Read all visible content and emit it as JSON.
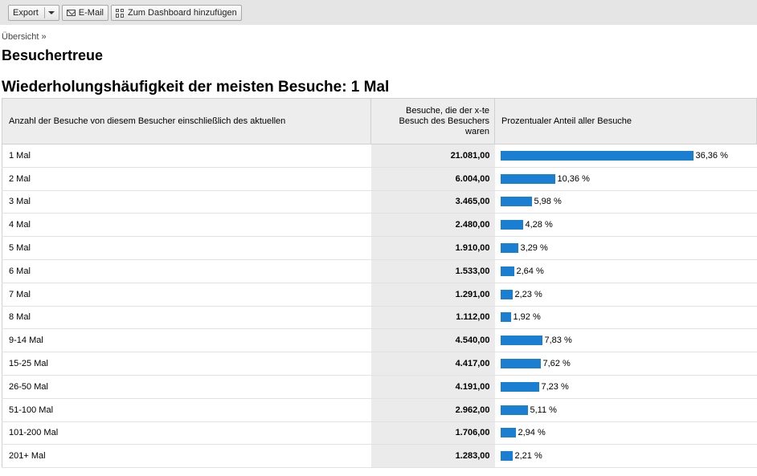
{
  "toolbar": {
    "export_label": "Export",
    "email_label": "E-Mail",
    "dashboard_label": "Zum Dashboard hinzufügen"
  },
  "breadcrumb": "Übersicht »",
  "page_title": "Besuchertreue",
  "section_title": "Wiederholungshäufigkeit der meisten Besuche: 1 Mal",
  "table": {
    "headers": [
      "Anzahl der Besuche von diesem Besucher einschließlich des aktuellen",
      "Besuche, die der x-te Besuch des Besuchers waren",
      "Prozentualer Anteil aller Besuche"
    ],
    "bar_color": "#1a7fd3",
    "rows": [
      {
        "label": "1 Mal",
        "visits": "21.081,00",
        "pct": "36,36 %",
        "pct_value": 36.36
      },
      {
        "label": "2 Mal",
        "visits": "6.004,00",
        "pct": "10,36 %",
        "pct_value": 10.36
      },
      {
        "label": "3 Mal",
        "visits": "3.465,00",
        "pct": "5,98 %",
        "pct_value": 5.98
      },
      {
        "label": "4 Mal",
        "visits": "2.480,00",
        "pct": "4,28 %",
        "pct_value": 4.28
      },
      {
        "label": "5 Mal",
        "visits": "1.910,00",
        "pct": "3,29 %",
        "pct_value": 3.29
      },
      {
        "label": "6 Mal",
        "visits": "1.533,00",
        "pct": "2,64 %",
        "pct_value": 2.64
      },
      {
        "label": "7 Mal",
        "visits": "1.291,00",
        "pct": "2,23 %",
        "pct_value": 2.23
      },
      {
        "label": "8 Mal",
        "visits": "1.112,00",
        "pct": "1,92 %",
        "pct_value": 1.92
      },
      {
        "label": "9-14 Mal",
        "visits": "4.540,00",
        "pct": "7,83 %",
        "pct_value": 7.83
      },
      {
        "label": "15-25 Mal",
        "visits": "4.417,00",
        "pct": "7,62 %",
        "pct_value": 7.62
      },
      {
        "label": "26-50 Mal",
        "visits": "4.191,00",
        "pct": "7,23 %",
        "pct_value": 7.23
      },
      {
        "label": "51-100 Mal",
        "visits": "2.962,00",
        "pct": "5,11 %",
        "pct_value": 5.11
      },
      {
        "label": "101-200 Mal",
        "visits": "1.706,00",
        "pct": "2,94 %",
        "pct_value": 2.94
      },
      {
        "label": "201+ Mal",
        "visits": "1.283,00",
        "pct": "2,21 %",
        "pct_value": 2.21
      }
    ]
  }
}
